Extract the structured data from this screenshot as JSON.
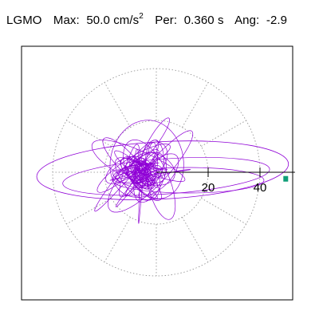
{
  "title": {
    "station": "LGMO",
    "max_label": "Max:",
    "max_value": "50.0",
    "max_unit": "cm/s",
    "max_unit_exp": "2",
    "period_label": "Per:",
    "period_value": "0.360 s",
    "angle_label": "Ang:",
    "angle_value": "-2.9"
  },
  "chart_data": {
    "type": "polar-orbit",
    "radial_tick_labels": [
      "20",
      "40"
    ],
    "radial_ticks": [
      20,
      40
    ],
    "radial_max": 50,
    "grid_circles": [
      20,
      40
    ],
    "spoke_angles_deg": [
      0,
      30,
      60,
      90,
      120,
      150,
      180,
      210,
      240,
      270,
      300,
      330
    ],
    "grid_style": "dotted",
    "max_amplitude": 50.0,
    "max_angle_deg": -2.9,
    "orbit_color": "#8f00d6",
    "marker_color": "#0f9e78",
    "frame_color": "#000000",
    "grid_color": "#8a8a8a"
  }
}
